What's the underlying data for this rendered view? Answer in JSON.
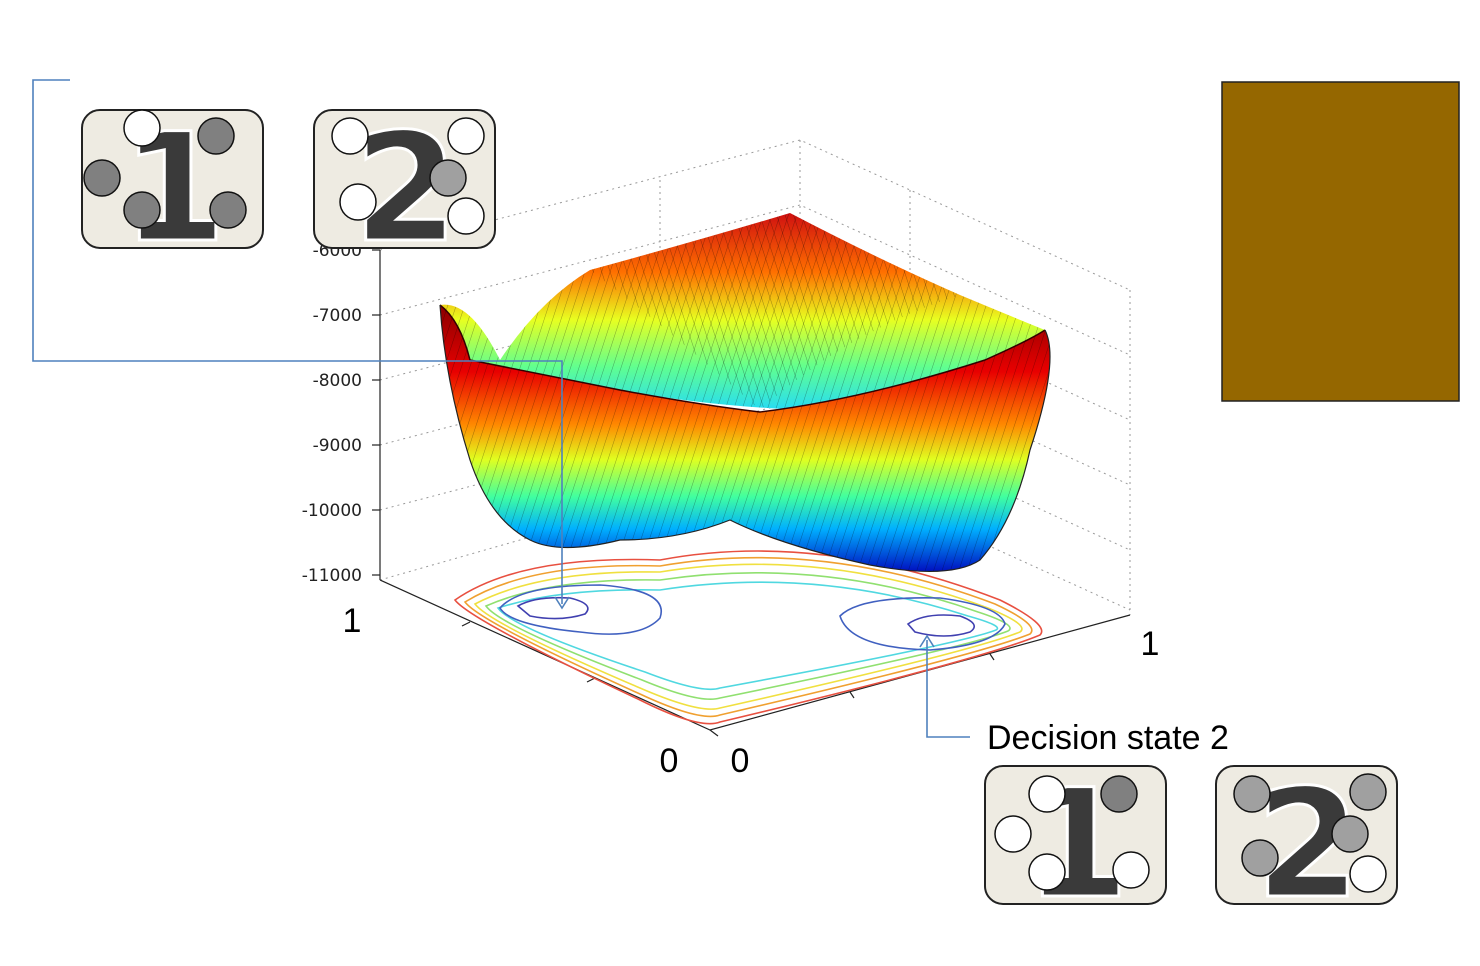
{
  "z_axis": {
    "ticks": [
      "-6000",
      "-7000",
      "-8000",
      "-9000",
      "-10000",
      "-11000"
    ]
  },
  "axis_labels": {
    "y_max": "1",
    "y_min": "0",
    "x_min": "0",
    "x_max": "1"
  },
  "annotation": {
    "label": "Decision state 2"
  },
  "state_cards": [
    {
      "digit": "1",
      "dots": [
        "#ffffff",
        "#808080",
        "#808080",
        "#808080",
        "#808080"
      ]
    },
    {
      "digit": "2",
      "dots": [
        "#ffffff",
        "#ffffff",
        "#a0a0a0",
        "#ffffff",
        "#ffffff"
      ]
    },
    {
      "digit": "1",
      "dots": [
        "#ffffff",
        "#808080",
        "#ffffff",
        "#ffffff",
        "#ffffff"
      ]
    },
    {
      "digit": "2",
      "dots": [
        "#a0a0a0",
        "#a0a0a0",
        "#a0a0a0",
        "#a0a0a0",
        "#ffffff"
      ]
    }
  ],
  "colors": {
    "swatch": "#956700",
    "connector": "#4f81bd"
  }
}
